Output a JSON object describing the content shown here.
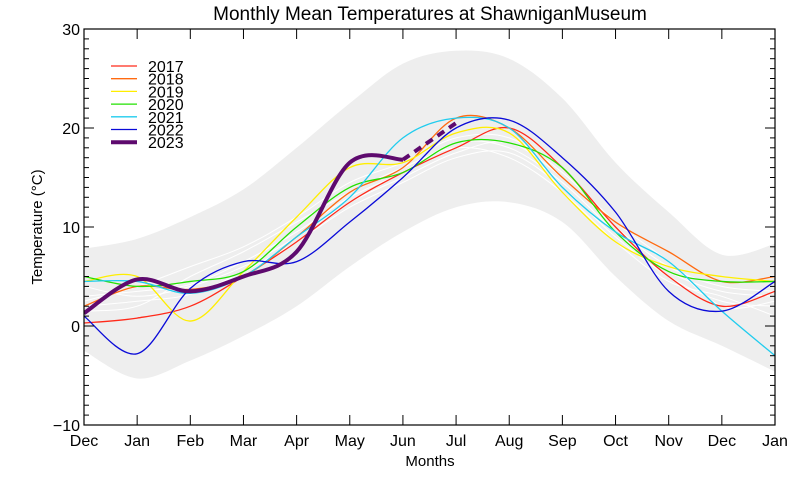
{
  "chart_data": {
    "type": "line",
    "title": "Monthly Mean Temperatures at ShawniganMuseum",
    "xlabel": "Months",
    "ylabel": "Temperature (°C)",
    "ylim": [
      -10,
      30
    ],
    "yticks": [
      -10,
      0,
      10,
      20,
      30
    ],
    "yminor_step": 1,
    "x": [
      "Dec",
      "Jan",
      "Feb",
      "Mar",
      "Apr",
      "May",
      "Jun",
      "Jul",
      "Aug",
      "Sep",
      "Oct",
      "Nov",
      "Dec",
      "Jan"
    ],
    "grid": false,
    "legend_position": "top-left",
    "envelope": {
      "color": "#eeeeee",
      "upper": [
        7.8,
        8.8,
        11,
        13.8,
        18,
        22.5,
        26.5,
        27.8,
        27,
        23,
        16.5,
        11.5,
        7.2,
        8.3
      ],
      "lower": [
        -2.5,
        -5.3,
        -3.5,
        -1,
        2,
        6,
        9.5,
        12,
        12.5,
        10.5,
        5,
        0.5,
        -2,
        -4.6
      ]
    },
    "background_series": [
      {
        "name": "history-1",
        "color": "#ffffff",
        "values": [
          3,
          3.5,
          4.2,
          6.5,
          9.5,
          13,
          15.5,
          18.5,
          18,
          14.5,
          9.5,
          5.5,
          3.5,
          3
        ]
      },
      {
        "name": "history-2",
        "color": "#ffffff",
        "values": [
          2,
          2.5,
          3.2,
          5.5,
          8.5,
          12,
          14.5,
          17,
          17.5,
          14,
          9,
          5,
          2.5,
          2
        ]
      },
      {
        "name": "history-3",
        "color": "#ffffff",
        "values": [
          4,
          3,
          4,
          6,
          9,
          12.5,
          15,
          17.5,
          18.5,
          15,
          10,
          6,
          4,
          3.5
        ]
      },
      {
        "name": "history-4",
        "color": "#ffffff",
        "values": [
          1.5,
          2,
          5,
          7.5,
          10.5,
          13.5,
          16,
          18,
          17,
          13.5,
          8.5,
          4.5,
          3,
          1
        ]
      },
      {
        "name": "history-5",
        "color": "#ffffff",
        "values": [
          2.5,
          4,
          6,
          8,
          11,
          14.5,
          16.5,
          19,
          19,
          15.5,
          10.5,
          6.5,
          2,
          2.5
        ]
      }
    ],
    "series": [
      {
        "name": "2017",
        "color": "#ff2a1a",
        "width": 1.3,
        "values": [
          0.3,
          0.8,
          2,
          5,
          8.5,
          12.5,
          15.5,
          18,
          20,
          16,
          10,
          5,
          2,
          3.5
        ]
      },
      {
        "name": "2018",
        "color": "#ff6a10",
        "width": 1.3,
        "values": [
          2,
          4,
          3.7,
          5,
          9,
          13.5,
          16,
          21,
          20,
          15,
          10.5,
          7.5,
          4.5,
          5
        ]
      },
      {
        "name": "2019",
        "color": "#ffee00",
        "width": 1.3,
        "values": [
          4.5,
          5,
          0.5,
          5.5,
          11,
          16,
          16.5,
          19.5,
          19.5,
          13.5,
          8.5,
          6,
          5,
          4.5
        ]
      },
      {
        "name": "2020",
        "color": "#22e000",
        "width": 1.3,
        "values": [
          5,
          4,
          4.5,
          5.5,
          10,
          14,
          15.5,
          18.5,
          18.5,
          16,
          9.5,
          5.5,
          4.5,
          4.5
        ]
      },
      {
        "name": "2021",
        "color": "#20ccee",
        "width": 1.3,
        "values": [
          4.5,
          4.5,
          3.3,
          5,
          9,
          13,
          19,
          21,
          20,
          14,
          9.5,
          6.5,
          1.5,
          -3
        ]
      },
      {
        "name": "2022",
        "color": "#0a0ad8",
        "width": 1.3,
        "values": [
          1,
          -2.8,
          3.8,
          6.5,
          6.5,
          10.5,
          15,
          20,
          20.8,
          17,
          11.5,
          3.5,
          1.5,
          4.5
        ]
      },
      {
        "name": "2023",
        "color": "#5e0a6e",
        "width": 4,
        "values": [
          1.3,
          4.7,
          3.5,
          5,
          7.5,
          16.5,
          16.8
        ],
        "projection": [
          16.8,
          20.5
        ]
      }
    ]
  }
}
